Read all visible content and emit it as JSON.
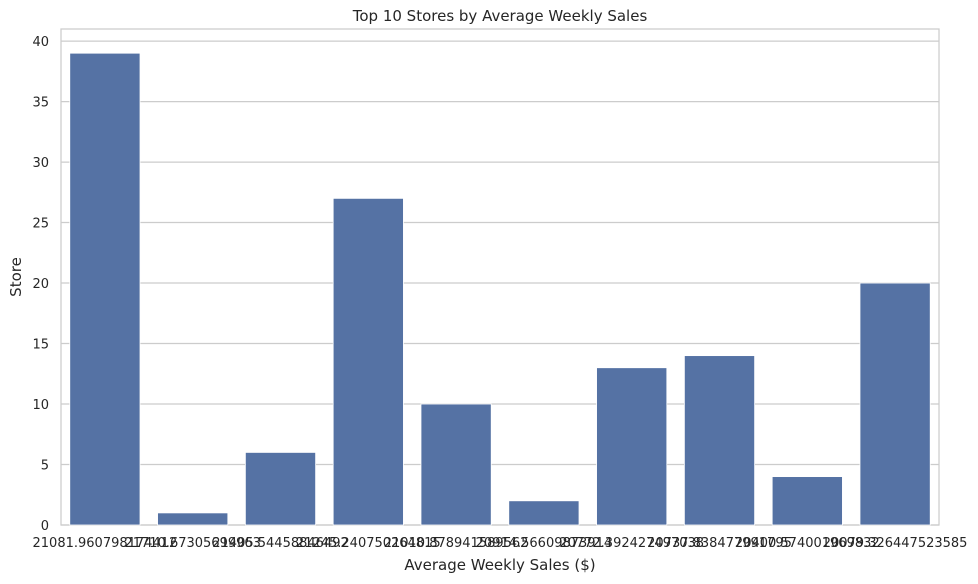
{
  "chart_data": {
    "type": "bar",
    "title": "Top 10 Stores by Average Weekly Sales",
    "xlabel": "Average Weekly Sales ($)",
    "ylabel": "Store",
    "categories": [
      "21081.960798174412",
      "21710.67305699963",
      "21405.54458846492",
      "21245.240750264815",
      "21010.878941589562",
      "20914.56609873914",
      "20772.392427497038",
      "20737.838477991795",
      "20400.574001969832",
      "20079.326447523585"
    ],
    "values": [
      39,
      1,
      6,
      27,
      10,
      2,
      13,
      14,
      4,
      20
    ],
    "ylim": [
      0,
      41
    ],
    "yticks": [
      0,
      5,
      10,
      15,
      20,
      25,
      30,
      35,
      40
    ],
    "grid": true,
    "bar_color": "#5572a4"
  }
}
